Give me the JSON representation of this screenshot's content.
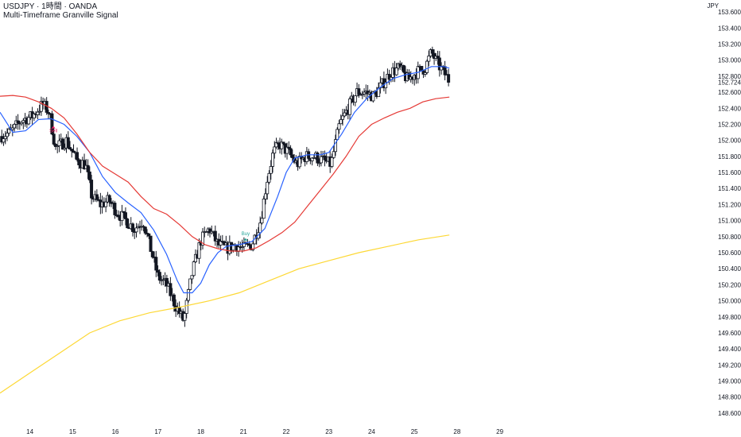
{
  "header": {
    "title": "USDJPY · 1時間 · OANDA",
    "indicator": "Multi-Timeframe Granville Signal",
    "currency": "JPY"
  },
  "colors": {
    "candle": "#131722",
    "ma_fast": "#2962ff",
    "ma_mid": "#e53935",
    "ma_slow": "#fdd835",
    "buy": "#26a69a",
    "sell": "#e91e63"
  },
  "chart_data": {
    "type": "candlestick",
    "title": "USDJPY · 1時間 · OANDA",
    "ylim": [
      148.5,
      153.75
    ],
    "x_range": [
      13.3,
      29.4
    ],
    "y_ticks": [
      153.6,
      153.4,
      153.2,
      153.0,
      152.8,
      152.6,
      152.4,
      152.2,
      152.0,
      151.8,
      151.6,
      151.4,
      151.2,
      151.0,
      150.8,
      150.6,
      150.4,
      150.2,
      150.0,
      149.8,
      149.6,
      149.4,
      149.2,
      149.0,
      148.8,
      148.6
    ],
    "y_tick_labels": [
      "153.600",
      "153.400",
      "153.200",
      "153.000",
      "152.800",
      "152.600",
      "152.400",
      "152.200",
      "152.000",
      "151.800",
      "151.600",
      "151.400",
      "151.200",
      "151.000",
      "150.800",
      "150.600",
      "150.400",
      "150.200",
      "150.000",
      "149.800",
      "149.600",
      "149.400",
      "149.200",
      "149.000",
      "148.800",
      "148.600"
    ],
    "last_price": 152.724,
    "last_price_label": "152.724",
    "x_ticks": [
      14,
      15,
      16,
      17,
      18,
      21,
      22,
      23,
      24,
      25,
      28,
      29
    ],
    "x_tick_labels": [
      "14",
      "15",
      "16",
      "17",
      "18",
      "21",
      "22",
      "23",
      "24",
      "25",
      "28",
      "29"
    ],
    "x_tick_positions": [
      14,
      15,
      16,
      17,
      18,
      19,
      20,
      21,
      22,
      23,
      24,
      25
    ],
    "price_path": [
      [
        13.3,
        152.05
      ],
      [
        13.55,
        152.1
      ],
      [
        13.8,
        152.25
      ],
      [
        14.05,
        152.3
      ],
      [
        14.3,
        152.45
      ],
      [
        14.45,
        152.35
      ],
      [
        14.6,
        151.9
      ],
      [
        14.85,
        152.0
      ],
      [
        15.1,
        151.75
      ],
      [
        15.3,
        151.7
      ],
      [
        15.45,
        151.3
      ],
      [
        15.65,
        151.2
      ],
      [
        15.85,
        151.25
      ],
      [
        16.05,
        151.1
      ],
      [
        16.25,
        151.0
      ],
      [
        16.45,
        150.9
      ],
      [
        16.65,
        151.0
      ],
      [
        16.85,
        150.6
      ],
      [
        17.0,
        150.3
      ],
      [
        17.2,
        150.2
      ],
      [
        17.4,
        149.95
      ],
      [
        17.6,
        149.75
      ],
      [
        17.8,
        150.35
      ],
      [
        18.0,
        150.75
      ],
      [
        18.2,
        150.9
      ],
      [
        18.4,
        150.7
      ],
      [
        18.6,
        150.65
      ],
      [
        18.8,
        150.7
      ],
      [
        19.0,
        150.65
      ],
      [
        19.2,
        150.7
      ],
      [
        19.4,
        151.0
      ],
      [
        19.55,
        151.5
      ],
      [
        19.7,
        151.85
      ],
      [
        19.85,
        151.95
      ],
      [
        20.05,
        151.85
      ],
      [
        20.25,
        151.7
      ],
      [
        20.45,
        151.8
      ],
      [
        20.65,
        151.8
      ],
      [
        20.85,
        151.75
      ],
      [
        21.05,
        151.7
      ],
      [
        21.25,
        152.2
      ],
      [
        21.45,
        152.4
      ],
      [
        21.65,
        152.6
      ],
      [
        21.85,
        152.6
      ],
      [
        22.05,
        152.55
      ],
      [
        22.25,
        152.7
      ],
      [
        22.45,
        152.85
      ],
      [
        22.65,
        152.9
      ],
      [
        22.85,
        152.75
      ],
      [
        23.05,
        152.85
      ],
      [
        23.25,
        152.9
      ],
      [
        23.4,
        153.1
      ],
      [
        23.55,
        152.95
      ],
      [
        23.75,
        152.8
      ],
      [
        23.82,
        152.724
      ]
    ],
    "moving_averages": [
      {
        "color_key": "ma_fast",
        "points": [
          [
            13.3,
            152.35
          ],
          [
            13.6,
            152.1
          ],
          [
            13.9,
            152.12
          ],
          [
            14.2,
            152.26
          ],
          [
            14.5,
            152.27
          ],
          [
            14.8,
            152.2
          ],
          [
            15.1,
            152.05
          ],
          [
            15.4,
            151.85
          ],
          [
            15.7,
            151.55
          ],
          [
            16.0,
            151.35
          ],
          [
            16.3,
            151.22
          ],
          [
            16.6,
            151.1
          ],
          [
            16.9,
            150.88
          ],
          [
            17.2,
            150.58
          ],
          [
            17.45,
            150.25
          ],
          [
            17.6,
            150.1
          ],
          [
            17.8,
            150.1
          ],
          [
            18.0,
            150.22
          ],
          [
            18.2,
            150.45
          ],
          [
            18.4,
            150.6
          ],
          [
            18.6,
            150.68
          ],
          [
            18.9,
            150.7
          ],
          [
            19.2,
            150.74
          ],
          [
            19.5,
            150.9
          ],
          [
            19.8,
            151.3
          ],
          [
            20.0,
            151.6
          ],
          [
            20.2,
            151.78
          ],
          [
            20.5,
            151.82
          ],
          [
            20.8,
            151.82
          ],
          [
            21.0,
            151.85
          ],
          [
            21.3,
            152.08
          ],
          [
            21.6,
            152.35
          ],
          [
            21.9,
            152.53
          ],
          [
            22.2,
            152.66
          ],
          [
            22.5,
            152.77
          ],
          [
            22.8,
            152.82
          ],
          [
            23.1,
            152.85
          ],
          [
            23.4,
            152.92
          ],
          [
            23.7,
            152.92
          ],
          [
            23.82,
            152.9
          ]
        ]
      },
      {
        "color_key": "ma_mid",
        "points": [
          [
            13.3,
            152.55
          ],
          [
            13.6,
            152.56
          ],
          [
            13.9,
            152.54
          ],
          [
            14.2,
            152.48
          ],
          [
            14.5,
            152.4
          ],
          [
            14.8,
            152.28
          ],
          [
            15.1,
            152.08
          ],
          [
            15.4,
            151.85
          ],
          [
            15.7,
            151.68
          ],
          [
            16.0,
            151.58
          ],
          [
            16.3,
            151.48
          ],
          [
            16.6,
            151.3
          ],
          [
            16.9,
            151.15
          ],
          [
            17.2,
            151.08
          ],
          [
            17.5,
            150.95
          ],
          [
            17.8,
            150.8
          ],
          [
            18.1,
            150.7
          ],
          [
            18.4,
            150.65
          ],
          [
            18.7,
            150.62
          ],
          [
            19.0,
            150.62
          ],
          [
            19.3,
            150.66
          ],
          [
            19.6,
            150.75
          ],
          [
            19.9,
            150.85
          ],
          [
            20.2,
            150.98
          ],
          [
            20.5,
            151.18
          ],
          [
            20.8,
            151.38
          ],
          [
            21.1,
            151.58
          ],
          [
            21.4,
            151.8
          ],
          [
            21.7,
            152.05
          ],
          [
            22.0,
            152.2
          ],
          [
            22.3,
            152.28
          ],
          [
            22.6,
            152.35
          ],
          [
            22.9,
            152.4
          ],
          [
            23.2,
            152.48
          ],
          [
            23.5,
            152.52
          ],
          [
            23.82,
            152.54
          ]
        ]
      },
      {
        "color_key": "ma_slow",
        "points": [
          [
            13.3,
            148.85
          ],
          [
            14.0,
            149.1
          ],
          [
            14.7,
            149.35
          ],
          [
            15.4,
            149.6
          ],
          [
            16.1,
            149.75
          ],
          [
            16.8,
            149.85
          ],
          [
            17.5,
            149.92
          ],
          [
            18.2,
            150.0
          ],
          [
            18.9,
            150.1
          ],
          [
            19.6,
            150.25
          ],
          [
            20.3,
            150.4
          ],
          [
            21.0,
            150.5
          ],
          [
            21.7,
            150.6
          ],
          [
            22.4,
            150.68
          ],
          [
            23.1,
            150.76
          ],
          [
            23.82,
            150.82
          ]
        ]
      }
    ],
    "signals": [
      {
        "label": "Buy",
        "x": 19.05,
        "y": 150.82,
        "color_key": "buy"
      },
      {
        "label": "Sell",
        "x": 14.55,
        "y": 152.1,
        "color_key": "sell"
      }
    ]
  }
}
